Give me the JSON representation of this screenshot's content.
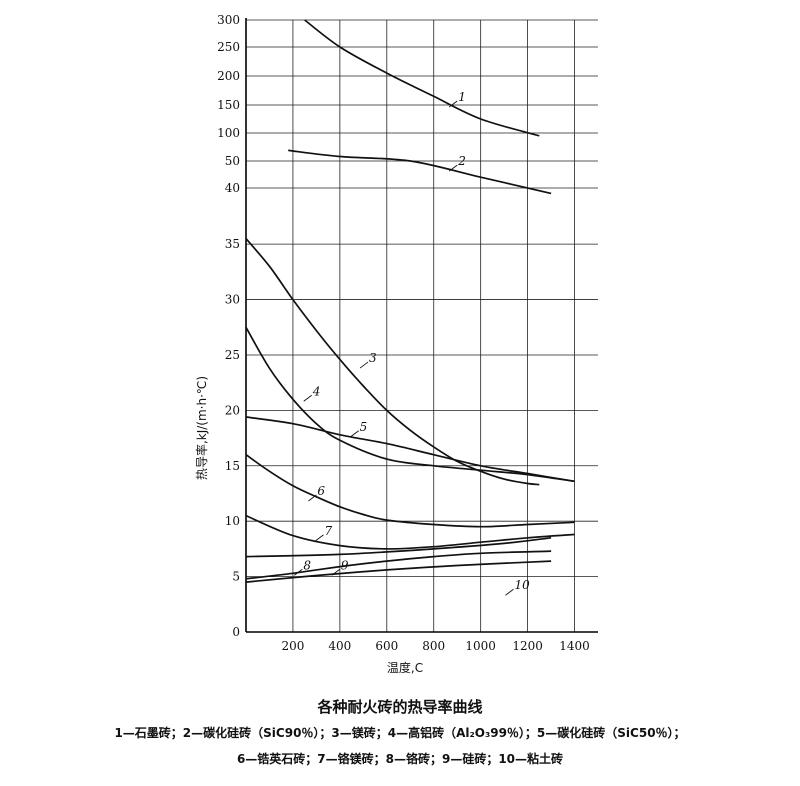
{
  "chart_data": {
    "type": "line",
    "title": "各种耐火砖的热导率曲线",
    "xlabel": "温度,C",
    "ylabel": "热导率,kJ/(m·h·℃)",
    "x_range": [
      0,
      1500
    ],
    "x_ticks": [
      200,
      400,
      600,
      800,
      1000,
      1200,
      1400
    ],
    "y_axis_lower": {
      "range": [
        0,
        37
      ],
      "ticks": [
        0,
        5,
        10,
        15,
        20,
        25,
        30,
        35
      ]
    },
    "y_axis_upper": {
      "ticks": [
        40,
        50,
        100,
        150,
        200,
        250,
        300
      ]
    },
    "grid": true,
    "series": [
      {
        "name": "1",
        "axis": "upper",
        "points": [
          [
            250,
            300
          ],
          [
            400,
            250
          ],
          [
            600,
            205
          ],
          [
            800,
            165
          ],
          [
            1000,
            125
          ],
          [
            1250,
            95
          ]
        ]
      },
      {
        "name": "2",
        "axis": "upper",
        "points": [
          [
            180,
            69
          ],
          [
            400,
            58
          ],
          [
            700,
            50
          ],
          [
            1000,
            44
          ],
          [
            1300,
            38
          ]
        ]
      },
      {
        "name": "3",
        "axis": "lower",
        "points": [
          [
            0,
            35.5
          ],
          [
            100,
            33
          ],
          [
            200,
            30
          ],
          [
            300,
            27.2
          ],
          [
            400,
            24.6
          ],
          [
            500,
            22.2
          ],
          [
            600,
            20
          ],
          [
            700,
            18.2
          ],
          [
            800,
            16.7
          ],
          [
            900,
            15.4
          ],
          [
            1000,
            14.5
          ],
          [
            1100,
            13.8
          ],
          [
            1200,
            13.4
          ],
          [
            1250,
            13.3
          ]
        ]
      },
      {
        "name": "4",
        "axis": "lower",
        "points": [
          [
            0,
            27.5
          ],
          [
            100,
            23.8
          ],
          [
            200,
            21
          ],
          [
            300,
            18.8
          ],
          [
            400,
            17.3
          ],
          [
            600,
            15.6
          ],
          [
            800,
            15
          ],
          [
            1000,
            14.6
          ],
          [
            1200,
            14.2
          ],
          [
            1400,
            13.6
          ]
        ]
      },
      {
        "name": "5",
        "axis": "lower",
        "points": [
          [
            0,
            19.4
          ],
          [
            200,
            18.8
          ],
          [
            400,
            17.8
          ],
          [
            600,
            17
          ],
          [
            800,
            16
          ],
          [
            1000,
            15
          ],
          [
            1200,
            14.3
          ],
          [
            1400,
            13.6
          ]
        ]
      },
      {
        "name": "6",
        "axis": "lower",
        "points": [
          [
            0,
            16
          ],
          [
            100,
            14.5
          ],
          [
            200,
            13.2
          ],
          [
            300,
            12.2
          ],
          [
            400,
            11.3
          ],
          [
            500,
            10.6
          ],
          [
            600,
            10.1
          ],
          [
            800,
            9.7
          ],
          [
            1000,
            9.5
          ],
          [
            1200,
            9.7
          ],
          [
            1400,
            9.9
          ]
        ]
      },
      {
        "name": "7",
        "axis": "lower",
        "points": [
          [
            0,
            10.5
          ],
          [
            200,
            8.7
          ],
          [
            400,
            7.8
          ],
          [
            600,
            7.5
          ],
          [
            800,
            7.7
          ],
          [
            1000,
            8.1
          ],
          [
            1200,
            8.5
          ],
          [
            1400,
            8.8
          ]
        ]
      },
      {
        "name": "8",
        "axis": "lower",
        "points": [
          [
            0,
            6.8
          ],
          [
            400,
            7
          ],
          [
            800,
            7.5
          ],
          [
            1100,
            8
          ],
          [
            1300,
            8.5
          ]
        ]
      },
      {
        "name": "9",
        "axis": "lower",
        "points": [
          [
            0,
            4.8
          ],
          [
            200,
            5.3
          ],
          [
            400,
            5.9
          ],
          [
            600,
            6.4
          ],
          [
            800,
            6.8
          ],
          [
            1000,
            7.1
          ],
          [
            1300,
            7.3
          ]
        ]
      },
      {
        "name": "10",
        "axis": "lower",
        "points": [
          [
            0,
            4.5
          ],
          [
            300,
            5.1
          ],
          [
            600,
            5.6
          ],
          [
            900,
            6
          ],
          [
            1200,
            6.3
          ],
          [
            1300,
            6.4
          ]
        ]
      }
    ],
    "curve_labels": [
      {
        "text": "1",
        "x": 900,
        "y_value": 150,
        "axis": "upper"
      },
      {
        "text": "2",
        "x": 900,
        "y_value": 47,
        "axis": "upper"
      },
      {
        "text": "3",
        "x": 520,
        "y_value": 24,
        "axis": "lower"
      },
      {
        "text": "4",
        "x": 280,
        "y_value": 21,
        "axis": "lower"
      },
      {
        "text": "5",
        "x": 480,
        "y_value": 17.8,
        "axis": "lower"
      },
      {
        "text": "6",
        "x": 300,
        "y_value": 12,
        "axis": "lower"
      },
      {
        "text": "7",
        "x": 330,
        "y_value": 8.4,
        "axis": "lower"
      },
      {
        "text": "8",
        "x": 240,
        "y_value": 5.3,
        "axis": "lower"
      },
      {
        "text": "9",
        "x": 400,
        "y_value": 5.3,
        "axis": "lower"
      },
      {
        "text": "10",
        "x": 1140,
        "y_value": 3.5,
        "axis": "lower"
      }
    ]
  },
  "legend": {
    "line1": "1—石墨砖；2—碳化硅砖（SiC90％）；3—镁砖；4—高铝砖（Al₂O₃99％）；5—碳化硅砖（SiC50％）；",
    "line2": "6—锆英石砖；7—铬镁砖；8—铬砖；9—硅砖；10—粘土砖"
  }
}
